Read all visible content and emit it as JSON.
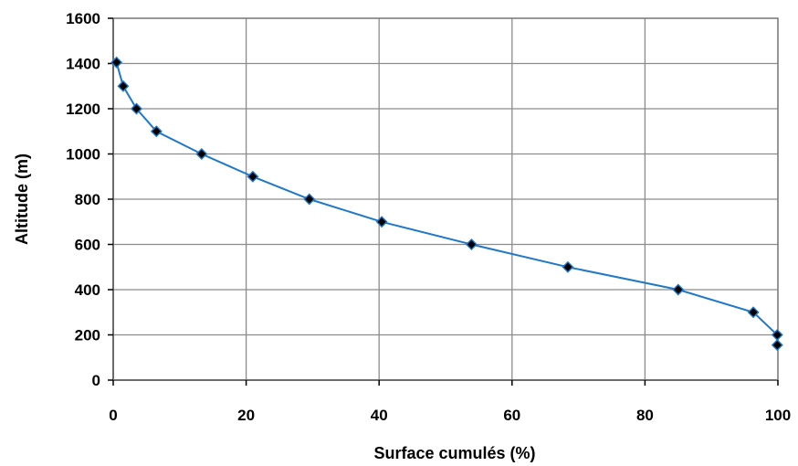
{
  "chart_data": {
    "type": "line",
    "xlabel": "Surface cumulés (%)",
    "ylabel": "Altitude (m)",
    "xlim": [
      0,
      100
    ],
    "ylim": [
      0,
      1600
    ],
    "x_ticks": [
      "0",
      "20",
      "40",
      "60",
      "80",
      "100"
    ],
    "y_ticks": [
      "0",
      "200",
      "400",
      "600",
      "800",
      "1000",
      "1200",
      "1400",
      "1600"
    ],
    "grid": true,
    "legend": "none",
    "series": [
      {
        "line_color": "#1f78c8",
        "marker_color": "#000000",
        "marker": "diamond",
        "points": [
          {
            "x": 0.5,
            "y": 1405
          },
          {
            "x": 1.5,
            "y": 1300
          },
          {
            "x": 3.5,
            "y": 1200
          },
          {
            "x": 6.5,
            "y": 1100
          },
          {
            "x": 13.3,
            "y": 1000
          },
          {
            "x": 21.0,
            "y": 900
          },
          {
            "x": 29.5,
            "y": 800
          },
          {
            "x": 40.4,
            "y": 700
          },
          {
            "x": 53.9,
            "y": 600
          },
          {
            "x": 68.4,
            "y": 500
          },
          {
            "x": 85.0,
            "y": 400
          },
          {
            "x": 96.3,
            "y": 300
          },
          {
            "x": 99.9,
            "y": 200
          },
          {
            "x": 99.9,
            "y": 155
          }
        ]
      }
    ]
  }
}
